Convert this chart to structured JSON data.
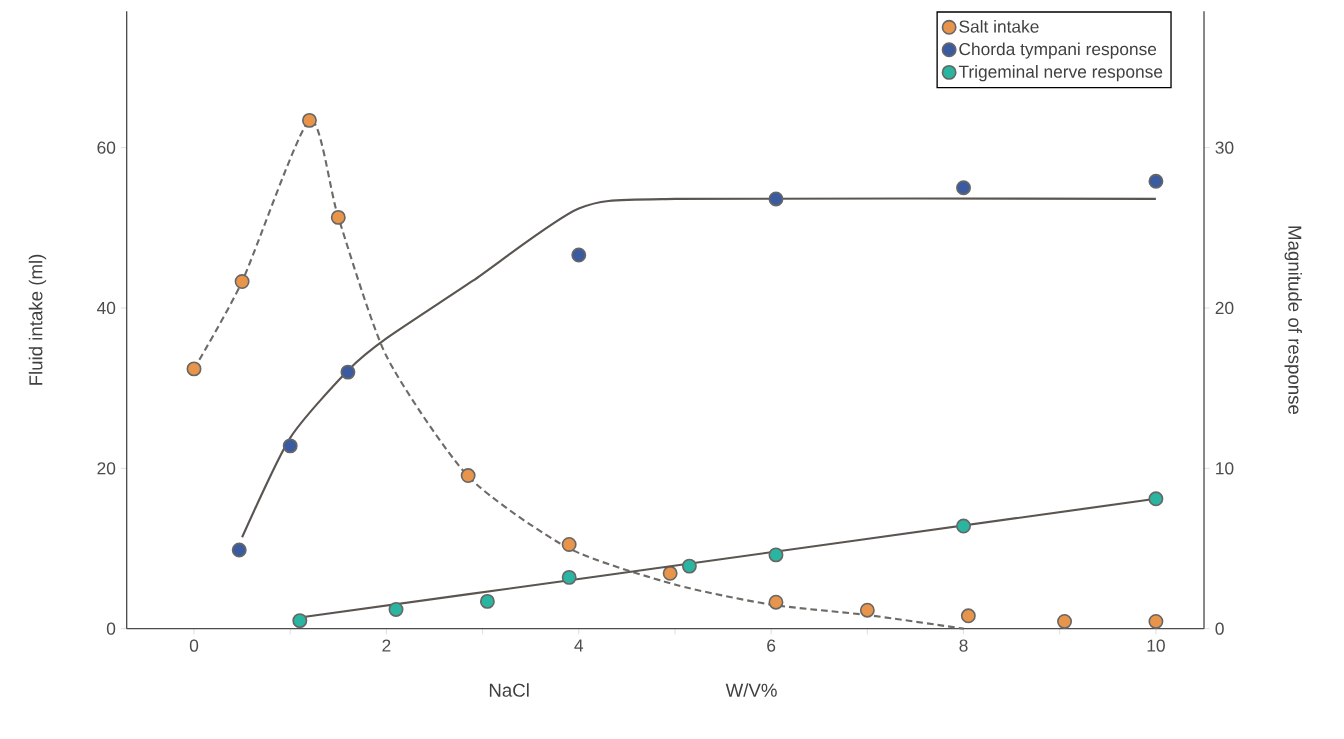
{
  "chart_data": {
    "type": "scatter",
    "xlabel": "NaCl",
    "ylabel": "Fluid intake (ml)",
    "y2label": "Magnitude of response",
    "annotations": [
      "W/V%"
    ],
    "xlim": [
      -0.7,
      10.5
    ],
    "ylim": [
      0,
      77
    ],
    "y2lim": [
      0,
      38.5
    ],
    "xticks": [
      0,
      {
        "value": 1,
        "label": null
      },
      2,
      {
        "value": 3,
        "label": null
      },
      4,
      {
        "value": 5,
        "label": null
      },
      6,
      {
        "value": 7,
        "label": null
      },
      8,
      {
        "value": 9,
        "label": null
      },
      10
    ],
    "yticks": [
      0,
      20,
      40,
      60
    ],
    "y2ticks": [
      0,
      10,
      20,
      30
    ],
    "grid": false,
    "legend": "top right",
    "marker": "circle",
    "series": [
      {
        "type": "line",
        "color": "#6e6a66",
        "line_style": "dashed",
        "marker": "none",
        "x": [
          0,
          0.5,
          1.2,
          1.5,
          2,
          2.85,
          3.9,
          5,
          6,
          7,
          8
        ],
        "values": [
          32.4,
          43.3,
          63.4,
          51.3,
          34,
          19,
          10,
          5.5,
          3,
          1.7,
          0
        ]
      },
      {
        "type": "line",
        "color": "#5a5550",
        "axis": "y2",
        "line_style": "solid",
        "marker": "none",
        "x": [
          0.5,
          1,
          1.6,
          2,
          2.9,
          4,
          5,
          10
        ],
        "values": [
          5.7,
          11.9,
          16.1,
          18.1,
          21.7,
          26.2,
          26.8,
          26.8
        ]
      },
      {
        "type": "line",
        "color": "#5a5550",
        "axis": "y2",
        "line_style": "solid",
        "marker": "none",
        "x": [
          1.1,
          4,
          10
        ],
        "values": [
          0.7,
          3.1,
          8.1
        ]
      },
      {
        "name": "Salt intake",
        "color": "#e8944a",
        "x": [
          0,
          0.5,
          1.2,
          1.5,
          2.85,
          3.9,
          4.95,
          6.05,
          7,
          8.05,
          9.05,
          10
        ],
        "values": [
          32.4,
          43.3,
          63.4,
          51.3,
          19.1,
          10.5,
          6.9,
          3.3,
          2.3,
          1.6,
          0.9,
          0.9
        ]
      },
      {
        "name": "Chorda tympani response",
        "color": "#3b5ba0",
        "axis": "y2",
        "x": [
          0.47,
          1.0,
          1.6,
          4.0,
          6.05,
          8.0,
          10.0
        ],
        "values": [
          4.9,
          11.4,
          16.0,
          23.3,
          26.8,
          27.5,
          27.9
        ]
      },
      {
        "name": "Trigeminal nerve response",
        "color": "#2ab5a0",
        "axis": "y2",
        "x": [
          1.1,
          2.1,
          3.05,
          3.9,
          5.15,
          6.05,
          8.0,
          10.0
        ],
        "values": [
          0.5,
          1.2,
          1.7,
          3.2,
          3.9,
          4.6,
          6.4,
          8.1
        ]
      }
    ]
  }
}
